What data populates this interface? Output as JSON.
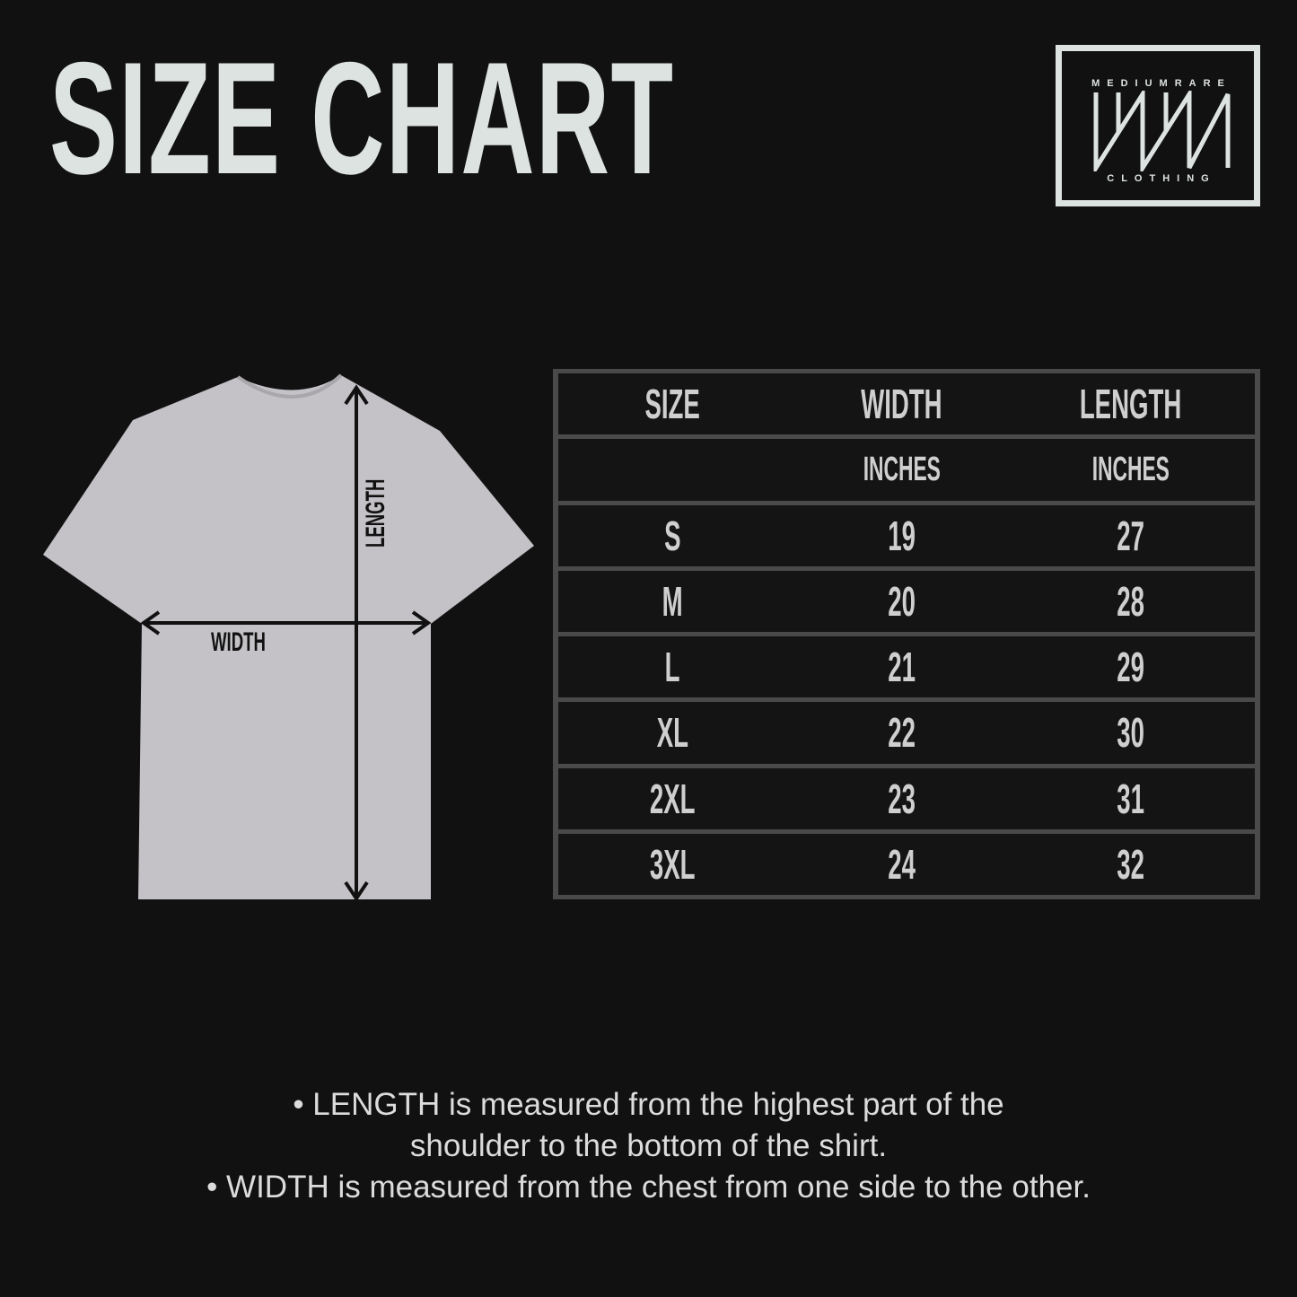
{
  "title": "SIZE CHART",
  "logo": {
    "top": "MEDIUMRARE",
    "bottom": "CLOTHING"
  },
  "diagram": {
    "length_label": "LENGTH",
    "width_label": "WIDTH",
    "shirt_color": "#c4c2c6"
  },
  "table": {
    "headers": [
      "SIZE",
      "WIDTH",
      "LENGTH"
    ],
    "units": [
      "",
      "INCHES",
      "INCHES"
    ],
    "rows": [
      [
        "S",
        "19",
        "27"
      ],
      [
        "M",
        "20",
        "28"
      ],
      [
        "L",
        "21",
        "29"
      ],
      [
        "XL",
        "22",
        "30"
      ],
      [
        "2XL",
        "23",
        "31"
      ],
      [
        "3XL",
        "24",
        "32"
      ]
    ]
  },
  "notes": [
    "• LENGTH is measured from the highest part of the",
    "shoulder to the bottom of the shirt.",
    "• WIDTH is measured from the chest from one side to the other."
  ]
}
